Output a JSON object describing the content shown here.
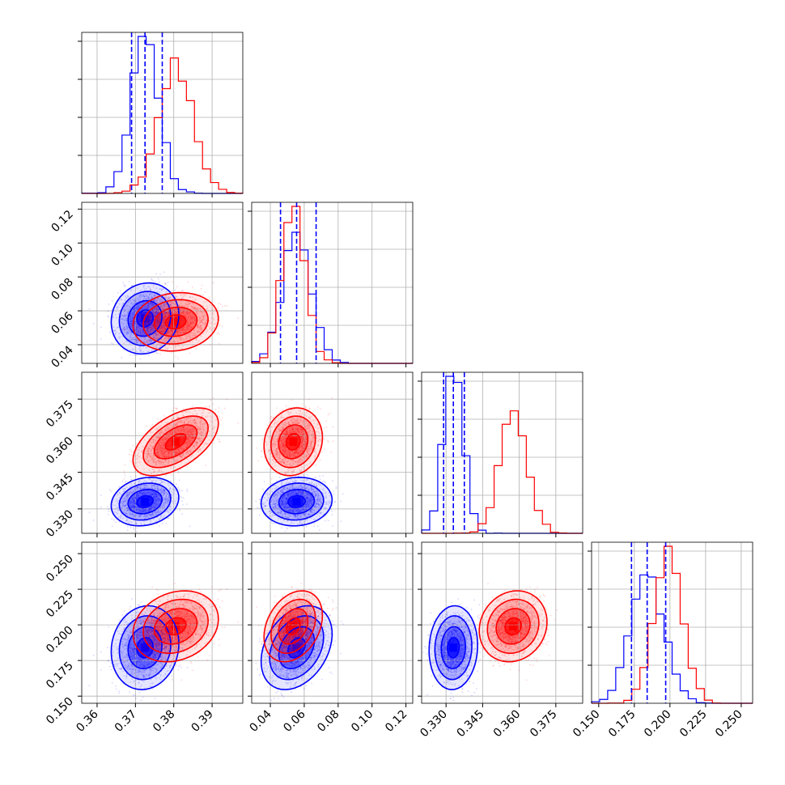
{
  "colors": {
    "blue": "#0000ff",
    "red": "#ff0000",
    "grid": "#b0b0b0",
    "frame": "#000000"
  },
  "chart_data": {
    "type": "corner",
    "title": "",
    "grid": true,
    "parameters": [
      {
        "ticks": [
          "0.36",
          "0.37",
          "0.38",
          "0.39"
        ],
        "tick_values": [
          0.36,
          0.37,
          0.38,
          0.39
        ],
        "range": [
          0.356,
          0.398
        ]
      },
      {
        "ticks": [
          "0.04",
          "0.06",
          "0.08",
          "0.10",
          "0.12"
        ],
        "tick_values": [
          0.04,
          0.06,
          0.08,
          0.1,
          0.12
        ],
        "range": [
          0.029,
          0.124
        ]
      },
      {
        "ticks": [
          "0.330",
          "0.345",
          "0.360",
          "0.375"
        ],
        "tick_values": [
          0.33,
          0.345,
          0.36,
          0.375
        ],
        "range": [
          0.32,
          0.386
        ]
      },
      {
        "ticks": [
          "0.150",
          "0.175",
          "0.200",
          "0.225",
          "0.250"
        ],
        "tick_values": [
          0.15,
          0.175,
          0.2,
          0.225,
          0.25
        ],
        "range": [
          0.145,
          0.258
        ]
      }
    ],
    "series": [
      {
        "color": "#0000ff",
        "means": [
          0.3725,
          0.0555,
          0.333,
          0.184
        ],
        "sigmas": [
          0.0035,
          0.0085,
          0.004,
          0.012
        ],
        "correlations": [
          [
            1.0,
            0.1,
            0.15,
            0.1
          ],
          [
            0.1,
            1.0,
            0.1,
            0.35
          ],
          [
            0.15,
            0.1,
            1.0,
            0.1
          ],
          [
            0.1,
            0.35,
            0.1,
            1.0
          ]
        ],
        "quantile_lines": [
          [
            0.369,
            0.3725,
            0.377
          ],
          [
            0.046,
            0.0555,
            0.067
          ],
          [
            0.329,
            0.333,
            0.3375
          ],
          [
            0.173,
            0.184,
            0.197
          ]
        ]
      },
      {
        "color": "#ff0000",
        "means": [
          0.3805,
          0.0535,
          0.3575,
          0.199
        ],
        "sigmas": [
          0.0045,
          0.007,
          0.0055,
          0.01
        ],
        "correlations": [
          [
            1.0,
            0.1,
            0.55,
            0.2
          ],
          [
            0.1,
            1.0,
            0.1,
            0.3
          ],
          [
            0.55,
            0.1,
            1.0,
            0.1
          ],
          [
            0.2,
            0.3,
            0.1,
            1.0
          ]
        ],
        "quantile_lines": []
      }
    ]
  }
}
